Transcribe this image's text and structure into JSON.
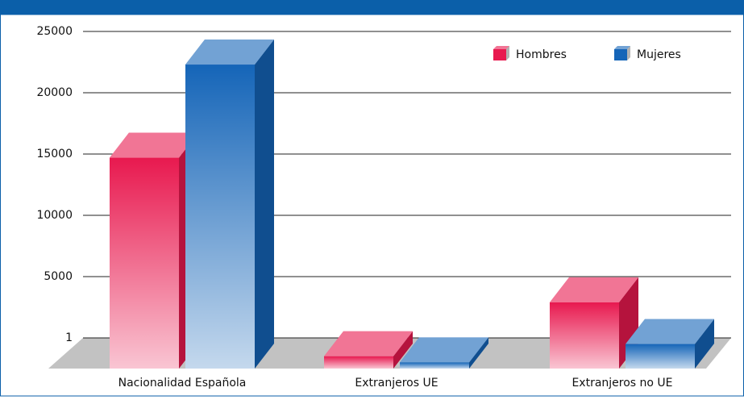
{
  "chart_data": {
    "type": "bar3d",
    "categories": [
      "Nacionalidad Española",
      "Extranjeros UE",
      "Extranjeros no UE"
    ],
    "series": [
      {
        "name": "Hombres",
        "color": "#e8194f",
        "values": [
          17200,
          1000,
          5400
        ]
      },
      {
        "name": "Mujeres",
        "color": "#1565b8",
        "values": [
          24800,
          500,
          2000
        ]
      }
    ],
    "ylim": [
      0,
      25000
    ],
    "yticks": [
      1,
      5000,
      10000,
      15000,
      20000,
      25000
    ],
    "grid": true,
    "legend": "top-right"
  }
}
